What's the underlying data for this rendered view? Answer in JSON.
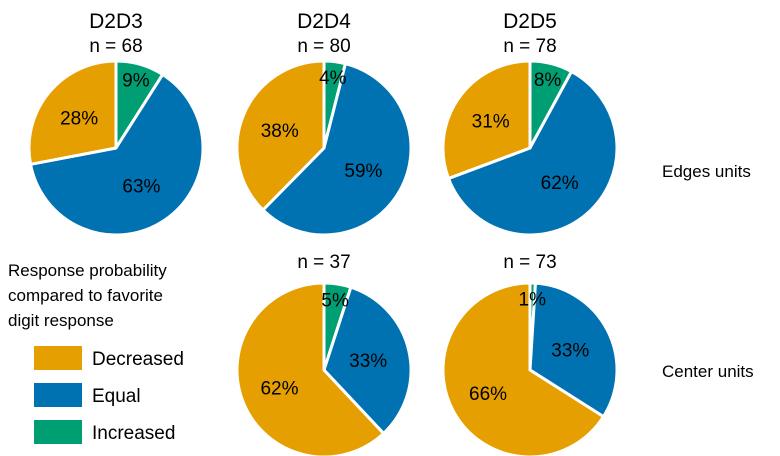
{
  "chart_data": {
    "type": "pie",
    "legend": {
      "title_lines": [
        "Response probability",
        "compared to favorite",
        "digit response"
      ],
      "entries": [
        {
          "label": "Decreased",
          "color": "#E69F00"
        },
        {
          "label": "Equal",
          "color": "#0072B2"
        },
        {
          "label": "Increased",
          "color": "#009E73"
        }
      ]
    },
    "columns": [
      "D2D3",
      "D2D4",
      "D2D5"
    ],
    "rows": [
      "Edges units",
      "Center units"
    ],
    "pies": [
      {
        "column": "D2D3",
        "row": "Edges units",
        "n_label": "n = 68",
        "slices": [
          {
            "category": "Increased",
            "value": 9,
            "label": "9%"
          },
          {
            "category": "Equal",
            "value": 63,
            "label": "63%"
          },
          {
            "category": "Decreased",
            "value": 28,
            "label": "28%"
          }
        ]
      },
      {
        "column": "D2D4",
        "row": "Edges units",
        "n_label": "n = 80",
        "slices": [
          {
            "category": "Increased",
            "value": 4,
            "label": "4%"
          },
          {
            "category": "Equal",
            "value": 59,
            "label": "59%"
          },
          {
            "category": "Decreased",
            "value": 38,
            "label": "38%"
          }
        ]
      },
      {
        "column": "D2D5",
        "row": "Edges units",
        "n_label": "n = 78",
        "slices": [
          {
            "category": "Increased",
            "value": 8,
            "label": "8%"
          },
          {
            "category": "Equal",
            "value": 62,
            "label": "62%"
          },
          {
            "category": "Decreased",
            "value": 31,
            "label": "31%"
          }
        ]
      },
      {
        "column": "D2D4",
        "row": "Center units",
        "n_label": "n = 37",
        "slices": [
          {
            "category": "Increased",
            "value": 5,
            "label": "5%"
          },
          {
            "category": "Equal",
            "value": 33,
            "label": "33%"
          },
          {
            "category": "Decreased",
            "value": 62,
            "label": "62%"
          }
        ]
      },
      {
        "column": "D2D5",
        "row": "Center units",
        "n_label": "n = 73",
        "slices": [
          {
            "category": "Increased",
            "value": 1,
            "label": "1%"
          },
          {
            "category": "Equal",
            "value": 33,
            "label": "33%"
          },
          {
            "category": "Decreased",
            "value": 66,
            "label": "66%"
          }
        ]
      }
    ]
  }
}
